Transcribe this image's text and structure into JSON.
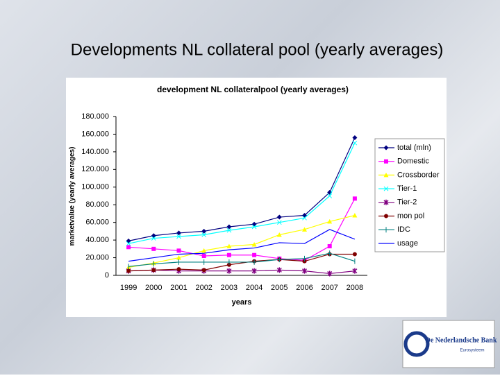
{
  "slide_title": "Developments NL collateral pool (yearly averages)",
  "logo": {
    "name": "De Nederlandsche Bank",
    "subtitle": "Eurosysteem"
  },
  "chart_data": {
    "type": "line",
    "title": "development NL collateralpool (yearly averages)",
    "x_label": "years",
    "y_label": "marketvalue (yearly averages)",
    "categories": [
      "1999",
      "2000",
      "2001",
      "2002",
      "2003",
      "2004",
      "2005",
      "2006",
      "2007",
      "2008"
    ],
    "ylim": [
      0,
      180000
    ],
    "yticks": [
      0,
      {
        "value": 20000,
        "label": "20.000"
      },
      {
        "value": 40000,
        "label": "40.000"
      },
      {
        "value": 60000,
        "label": "60.000"
      },
      {
        "value": 80000,
        "label": "80.000"
      },
      {
        "value": 100000,
        "label": "100.000"
      },
      {
        "value": 120000,
        "label": "120.000"
      },
      {
        "value": 140000,
        "label": "140.000"
      },
      {
        "value": 160000,
        "label": "160.000"
      },
      {
        "value": 180000,
        "label": "180.000"
      }
    ],
    "grid": false,
    "legend": "right",
    "series": [
      {
        "name": "total (mln)",
        "color": "#000080",
        "marker": "diamond",
        "values": [
          39000,
          45000,
          48000,
          50000,
          55000,
          58000,
          66000,
          68000,
          94000,
          156000
        ]
      },
      {
        "name": "Domestic",
        "color": "#ff00ff",
        "marker": "square",
        "values": [
          32000,
          30000,
          28000,
          22000,
          23000,
          23000,
          19000,
          17000,
          33000,
          87000
        ]
      },
      {
        "name": "Crossborder",
        "color": "#ffff00",
        "marker": "triangle",
        "values": [
          9000,
          14000,
          20000,
          28000,
          33000,
          35000,
          46000,
          52000,
          61000,
          68000
        ]
      },
      {
        "name": "Tier-1",
        "color": "#00ffff",
        "marker": "x",
        "values": [
          36000,
          42000,
          44000,
          46000,
          51000,
          55000,
          60000,
          65000,
          90000,
          150000
        ]
      },
      {
        "name": "Tier-2",
        "color": "#800080",
        "marker": "asterisk",
        "values": [
          5000,
          6000,
          5000,
          5000,
          5000,
          5000,
          6000,
          5000,
          2000,
          5000
        ]
      },
      {
        "name": "mon pol",
        "color": "#800000",
        "marker": "circle",
        "values": [
          5000,
          6000,
          7000,
          6000,
          12000,
          16000,
          18000,
          16000,
          24000,
          24000
        ]
      },
      {
        "name": "IDC",
        "color": "#008080",
        "marker": "bar",
        "values": [
          10000,
          13000,
          15000,
          15000,
          15000,
          15000,
          18000,
          19000,
          25000,
          16000
        ]
      },
      {
        "name": "usage",
        "color": "#0000ff",
        "marker": "none",
        "values": [
          16000,
          20000,
          24000,
          25000,
          29000,
          31000,
          37000,
          36000,
          52000,
          41000
        ]
      }
    ]
  }
}
